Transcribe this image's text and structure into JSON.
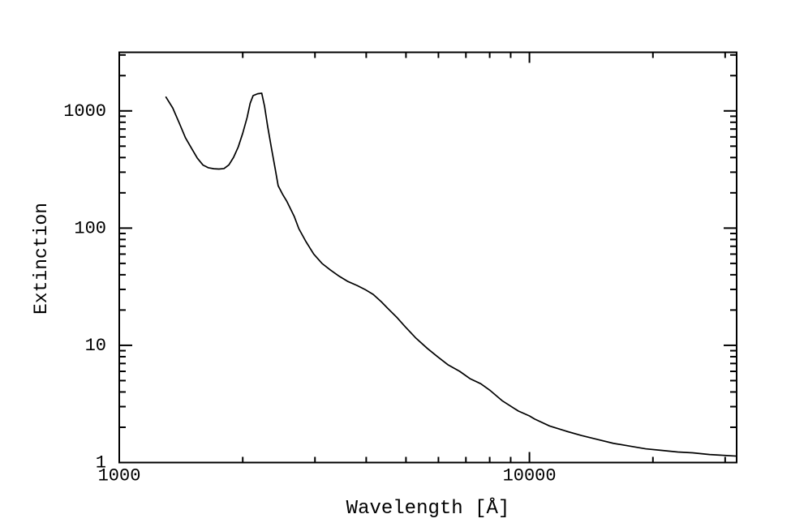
{
  "style": {
    "background": "#ffffff",
    "frame_color": "#000000",
    "curve_color": "#000000",
    "text_color": "#000000"
  },
  "chart_data": {
    "type": "line",
    "title": "",
    "xlabel": "Wavelength [Å]",
    "ylabel": "Extinction",
    "x_scale": "log",
    "y_scale": "log",
    "xlim": [
      1000,
      32000
    ],
    "ylim": [
      1,
      3162
    ],
    "grid": false,
    "legend": "none",
    "x_tick_labels": [
      {
        "value": 1000,
        "label": "1000"
      },
      {
        "value": 10000,
        "label": "10000"
      }
    ],
    "y_tick_labels": [
      {
        "value": 1,
        "label": "1"
      },
      {
        "value": 10,
        "label": "10"
      },
      {
        "value": 100,
        "label": "100"
      },
      {
        "value": 1000,
        "label": "1000"
      }
    ],
    "series": [
      {
        "name": "extinction-curve",
        "color": "#000000",
        "points": [
          [
            1300,
            1310
          ],
          [
            1350,
            1060
          ],
          [
            1400,
            790
          ],
          [
            1450,
            590
          ],
          [
            1500,
            480
          ],
          [
            1550,
            395
          ],
          [
            1600,
            345
          ],
          [
            1650,
            327
          ],
          [
            1700,
            321
          ],
          [
            1750,
            319
          ],
          [
            1800,
            322
          ],
          [
            1850,
            346
          ],
          [
            1900,
            402
          ],
          [
            1950,
            492
          ],
          [
            2000,
            645
          ],
          [
            2050,
            880
          ],
          [
            2085,
            1160
          ],
          [
            2120,
            1350
          ],
          [
            2175,
            1400
          ],
          [
            2225,
            1415
          ],
          [
            2260,
            1100
          ],
          [
            2300,
            740
          ],
          [
            2350,
            480
          ],
          [
            2400,
            320
          ],
          [
            2440,
            230
          ],
          [
            2500,
            195
          ],
          [
            2560,
            170
          ],
          [
            2670,
            126
          ],
          [
            2740,
            99
          ],
          [
            2850,
            77
          ],
          [
            2980,
            60
          ],
          [
            3120,
            50
          ],
          [
            3270,
            44
          ],
          [
            3420,
            39.3
          ],
          [
            3600,
            35.2
          ],
          [
            3800,
            32.4
          ],
          [
            3970,
            30
          ],
          [
            4160,
            27.2
          ],
          [
            4350,
            23.6
          ],
          [
            4550,
            20.1
          ],
          [
            4760,
            17.2
          ],
          [
            4980,
            14.4
          ],
          [
            5290,
            11.5
          ],
          [
            5640,
            9.4
          ],
          [
            5970,
            8.0
          ],
          [
            6340,
            6.8
          ],
          [
            6760,
            6.0
          ],
          [
            7160,
            5.2
          ],
          [
            7610,
            4.7
          ],
          [
            8000,
            4.15
          ],
          [
            8600,
            3.35
          ],
          [
            9400,
            2.75
          ],
          [
            10000,
            2.5
          ],
          [
            10300,
            2.35
          ],
          [
            11200,
            2.05
          ],
          [
            12300,
            1.85
          ],
          [
            13400,
            1.7
          ],
          [
            14700,
            1.57
          ],
          [
            16000,
            1.46
          ],
          [
            17600,
            1.38
          ],
          [
            19200,
            1.31
          ],
          [
            21000,
            1.27
          ],
          [
            23000,
            1.23
          ],
          [
            25000,
            1.21
          ],
          [
            27500,
            1.17
          ],
          [
            30000,
            1.15
          ],
          [
            32000,
            1.135
          ]
        ]
      }
    ]
  }
}
